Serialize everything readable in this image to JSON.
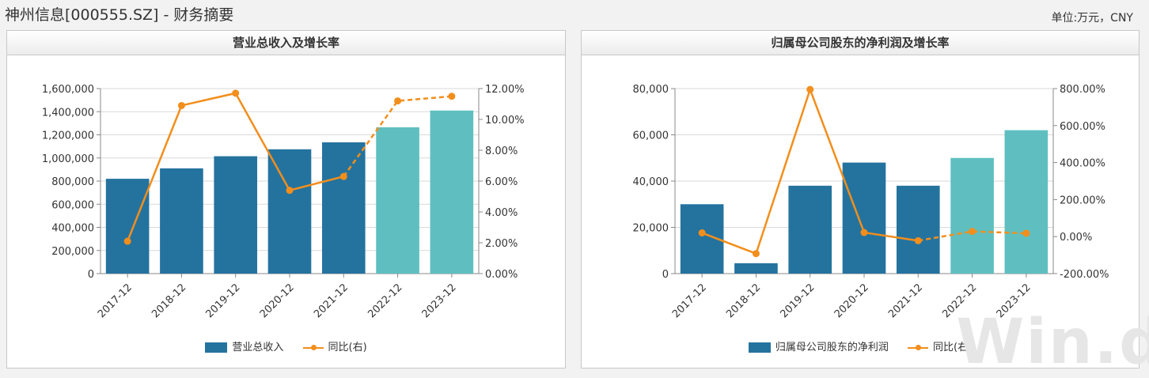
{
  "header": {
    "title": "神州信息[000555.SZ] - 财务摘要",
    "unit": "单位:万元，CNY"
  },
  "watermark": "Win.d",
  "colors": {
    "bar_actual": "#24739f",
    "bar_forecast": "#5fbfc0",
    "line": "#f28e1c",
    "grid": "#d9d9d9"
  },
  "chart_data": [
    {
      "type": "bar",
      "title": "营业总收入及增长率",
      "categories": [
        "2017-12",
        "2018-12",
        "2019-12",
        "2020-12",
        "2021-12",
        "2022-12",
        "2023-12"
      ],
      "forecast_from_index": 5,
      "series": [
        {
          "name": "营业总收入",
          "type": "bar",
          "axis": "left",
          "values": [
            820000,
            910000,
            1015000,
            1075000,
            1135000,
            1265000,
            1410000
          ]
        },
        {
          "name": "同比(右)",
          "type": "line",
          "axis": "right",
          "values": [
            2.1,
            10.9,
            11.7,
            5.4,
            6.3,
            11.2,
            11.5
          ]
        }
      ],
      "left_axis": {
        "ylim": [
          0,
          1600000
        ],
        "ticks": [
          "0",
          "200,000",
          "400,000",
          "600,000",
          "800,000",
          "1,000,000",
          "1,200,000",
          "1,400,000",
          "1,600,000"
        ]
      },
      "right_axis": {
        "ylim": [
          0,
          12
        ],
        "ticks": [
          "0.00%",
          "2.00%",
          "4.00%",
          "6.00%",
          "8.00%",
          "10.00%",
          "12.00%"
        ]
      },
      "grid": true,
      "legend_position": "bottom"
    },
    {
      "type": "bar",
      "title": "归属母公司股东的净利润及增长率",
      "categories": [
        "2017-12",
        "2018-12",
        "2019-12",
        "2020-12",
        "2021-12",
        "2022-12",
        "2023-12"
      ],
      "forecast_from_index": 5,
      "series": [
        {
          "name": "归属母公司股东的净利润",
          "type": "bar",
          "axis": "left",
          "values": [
            30000,
            4500,
            38000,
            48000,
            38000,
            50000,
            62000
          ]
        },
        {
          "name": "同比(右)",
          "type": "line",
          "axis": "right",
          "values": [
            20,
            -92,
            795,
            22,
            -22,
            28,
            18
          ]
        }
      ],
      "left_axis": {
        "ylim": [
          0,
          80000
        ],
        "ticks": [
          "0",
          "20,000",
          "40,000",
          "60,000",
          "80,000"
        ]
      },
      "right_axis": {
        "ylim": [
          -200,
          800
        ],
        "ticks": [
          "-200.00%",
          "0.00%",
          "200.00%",
          "400.00%",
          "600.00%",
          "800.00%"
        ]
      },
      "grid": true,
      "legend_position": "bottom"
    }
  ]
}
